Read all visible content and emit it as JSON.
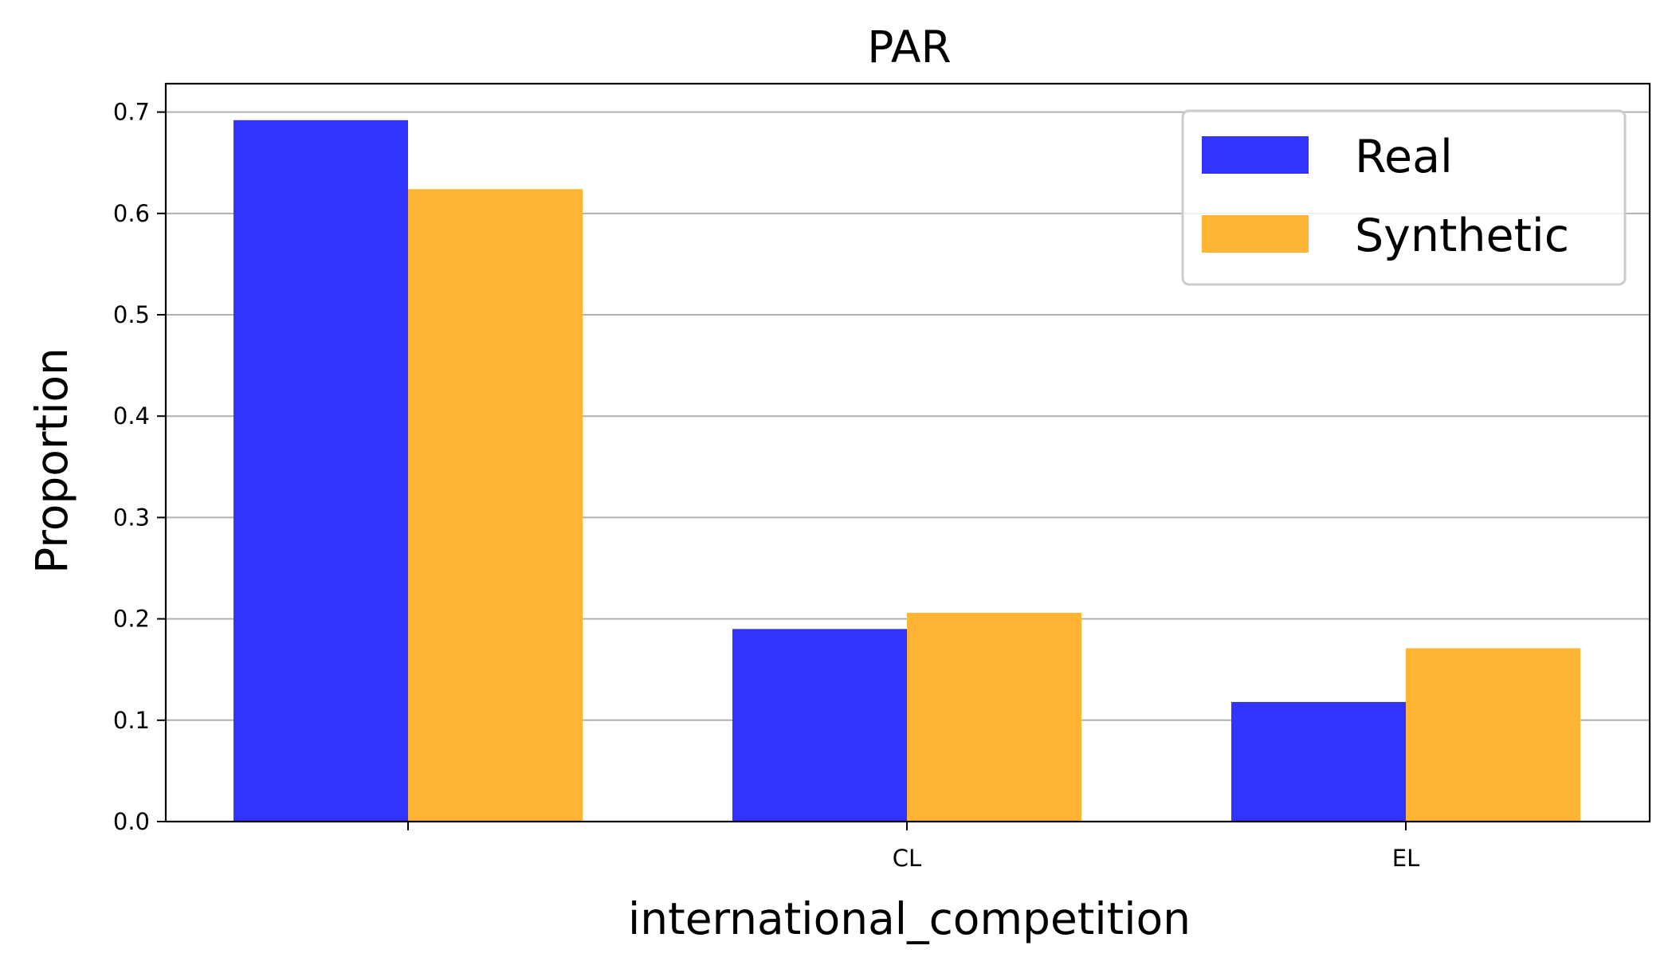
{
  "chart_data": {
    "type": "bar",
    "title": "PAR",
    "xlabel": "international_competition",
    "ylabel": "Proportion",
    "categories": [
      "",
      "CL",
      "EL"
    ],
    "series": [
      {
        "name": "Real",
        "color": "#3333ff",
        "values": [
          0.692,
          0.19,
          0.118
        ]
      },
      {
        "name": "Synthetic",
        "color": "#ffb533",
        "values": [
          0.624,
          0.206,
          0.171
        ]
      }
    ],
    "ylim": [
      0,
      0.728
    ],
    "yticks": [
      "0.0",
      "0.1",
      "0.2",
      "0.3",
      "0.4",
      "0.5",
      "0.6",
      "0.7"
    ],
    "grid": "horizontal",
    "legend_position": "top-right"
  }
}
